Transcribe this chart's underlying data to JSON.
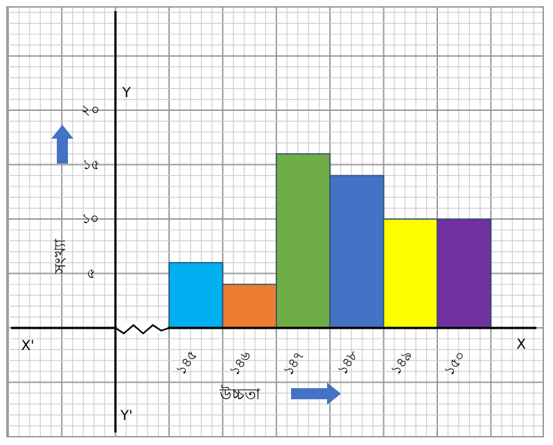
{
  "chart_data": {
    "type": "bar",
    "xlabel": "উচ্চতা",
    "ylabel": "সংখ্যা",
    "categories": [
      "১৪৫",
      "১৪৬",
      "১৪৭",
      "১৪৮",
      "১৪৯",
      "১৫০"
    ],
    "values": [
      6,
      4,
      16,
      14,
      10,
      10
    ],
    "colors": [
      "#00b0f0",
      "#ed7d31",
      "#70ad47",
      "#4472c4",
      "#ffff00",
      "#7030a0"
    ],
    "ylim": [
      -10,
      29.5
    ],
    "yticks": [
      {
        "value": 5,
        "label": "৫"
      },
      {
        "value": 10,
        "label": "১০"
      },
      {
        "value": 15,
        "label": "১৫"
      },
      {
        "value": 20,
        "label": "২০"
      }
    ],
    "grid": true,
    "annotations": [
      "X'",
      "X",
      "Y",
      "Y'"
    ]
  }
}
